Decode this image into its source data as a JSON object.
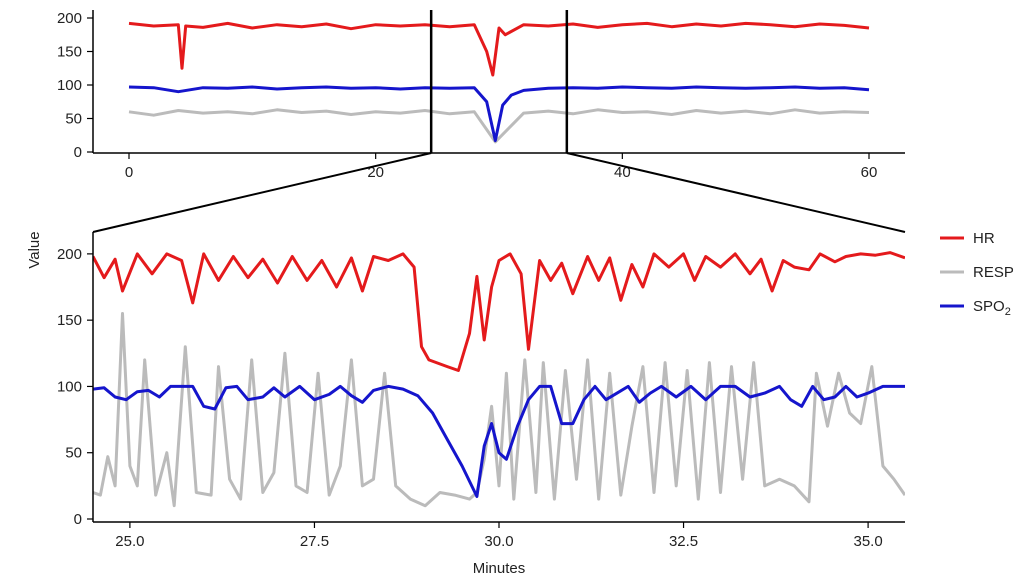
{
  "chart_data": [
    {
      "type": "line",
      "id": "overview",
      "xlim": [
        0,
        60
      ],
      "ylim": [
        0,
        200
      ],
      "xticks": [
        "0",
        "20",
        "40",
        "60"
      ],
      "yticks": [
        "0",
        "50",
        "100",
        "150",
        "200"
      ],
      "xlabel": "",
      "ylabel": "",
      "highlight_window": [
        24.5,
        35.5
      ],
      "series": [
        {
          "name": "RESP",
          "color": "#bbbbbb",
          "x": [
            0,
            2,
            4,
            6,
            8,
            10,
            12,
            14,
            16,
            18,
            20,
            22,
            24,
            26,
            28,
            29.7,
            32,
            34,
            36,
            38,
            40,
            42,
            44,
            46,
            48,
            50,
            52,
            54,
            56,
            58,
            60
          ],
          "y": [
            60,
            55,
            62,
            58,
            60,
            57,
            63,
            59,
            61,
            56,
            60,
            58,
            62,
            57,
            60,
            15,
            58,
            61,
            57,
            63,
            59,
            60,
            56,
            62,
            58,
            61,
            57,
            63,
            58,
            60,
            59
          ]
        },
        {
          "name": "HR",
          "color": "#e41a1c",
          "x": [
            0,
            2,
            4,
            4.3,
            4.6,
            6,
            8,
            10,
            12,
            14,
            16,
            18,
            20,
            22,
            24,
            26,
            28,
            29,
            29.5,
            30,
            30.5,
            32,
            34,
            36,
            38,
            40,
            42,
            44,
            46,
            48,
            50,
            52,
            54,
            56,
            58,
            60
          ],
          "y": [
            192,
            188,
            190,
            125,
            188,
            186,
            192,
            185,
            190,
            187,
            191,
            184,
            190,
            188,
            190,
            187,
            190,
            150,
            115,
            185,
            175,
            190,
            188,
            191,
            186,
            190,
            192,
            187,
            191,
            188,
            192,
            190,
            187,
            191,
            189,
            185
          ]
        },
        {
          "name": "SPO₂",
          "color": "#1515cc",
          "x": [
            0,
            2,
            4,
            6,
            8,
            10,
            12,
            14,
            16,
            18,
            20,
            22,
            24,
            26,
            28,
            29,
            29.7,
            30.3,
            31,
            32,
            34,
            36,
            38,
            40,
            42,
            44,
            46,
            48,
            50,
            52,
            54,
            56,
            58,
            60
          ],
          "y": [
            97,
            96,
            90,
            96,
            95,
            97,
            94,
            96,
            97,
            95,
            96,
            94,
            96,
            95,
            96,
            75,
            17,
            70,
            85,
            92,
            95,
            96,
            95,
            97,
            96,
            95,
            97,
            96,
            95,
            96,
            97,
            95,
            96,
            93
          ]
        }
      ]
    },
    {
      "type": "line",
      "id": "detail",
      "xlim": [
        24.5,
        35.5
      ],
      "ylim": [
        0,
        215
      ],
      "xticks": [
        "25.0",
        "27.5",
        "30.0",
        "32.5",
        "35.0"
      ],
      "yticks": [
        "0",
        "50",
        "100",
        "150",
        "200"
      ],
      "xlabel": "Minutes",
      "ylabel": "Value",
      "legend_position": "right",
      "series": [
        {
          "name": "RESP",
          "color": "#bbbbbb",
          "x": [
            24.5,
            24.6,
            24.7,
            24.8,
            24.9,
            25.0,
            25.1,
            25.2,
            25.35,
            25.5,
            25.6,
            25.75,
            25.9,
            26.1,
            26.2,
            26.35,
            26.5,
            26.65,
            26.8,
            26.95,
            27.1,
            27.25,
            27.4,
            27.55,
            27.7,
            27.85,
            28.0,
            28.15,
            28.3,
            28.45,
            28.6,
            28.8,
            29.0,
            29.2,
            29.4,
            29.6,
            29.7,
            29.8,
            29.9,
            30.0,
            30.1,
            30.2,
            30.35,
            30.5,
            30.6,
            30.75,
            30.9,
            31.05,
            31.2,
            31.35,
            31.5,
            31.65,
            31.8,
            31.95,
            32.1,
            32.25,
            32.4,
            32.55,
            32.7,
            32.85,
            33.0,
            33.15,
            33.3,
            33.45,
            33.6,
            33.8,
            34.0,
            34.2,
            34.3,
            34.45,
            34.6,
            34.75,
            34.9,
            35.05,
            35.2,
            35.35,
            35.5
          ],
          "y": [
            20,
            18,
            47,
            25,
            155,
            40,
            25,
            120,
            18,
            50,
            10,
            130,
            20,
            18,
            115,
            30,
            15,
            120,
            20,
            35,
            125,
            25,
            20,
            110,
            18,
            40,
            120,
            25,
            30,
            110,
            25,
            15,
            10,
            20,
            18,
            15,
            20,
            45,
            85,
            25,
            110,
            15,
            120,
            20,
            118,
            15,
            112,
            30,
            120,
            15,
            110,
            18,
            70,
            115,
            20,
            118,
            25,
            112,
            15,
            118,
            20,
            115,
            30,
            118,
            25,
            30,
            25,
            13,
            110,
            70,
            110,
            80,
            72,
            115,
            40,
            30,
            18
          ]
        },
        {
          "name": "HR",
          "color": "#e41a1c",
          "x": [
            24.5,
            24.65,
            24.8,
            24.9,
            25.1,
            25.3,
            25.5,
            25.7,
            25.85,
            26.0,
            26.2,
            26.4,
            26.6,
            26.8,
            27.0,
            27.2,
            27.4,
            27.6,
            27.8,
            28.0,
            28.15,
            28.3,
            28.5,
            28.7,
            28.85,
            28.95,
            29.05,
            29.3,
            29.45,
            29.6,
            29.7,
            29.8,
            29.9,
            30.0,
            30.15,
            30.3,
            30.4,
            30.55,
            30.7,
            30.85,
            31.0,
            31.2,
            31.35,
            31.5,
            31.65,
            31.8,
            31.95,
            32.1,
            32.3,
            32.5,
            32.65,
            32.8,
            33.0,
            33.2,
            33.4,
            33.55,
            33.7,
            33.85,
            34.0,
            34.2,
            34.35,
            34.55,
            34.7,
            34.9,
            35.1,
            35.3,
            35.5
          ],
          "y": [
            198,
            182,
            196,
            172,
            200,
            185,
            200,
            195,
            163,
            200,
            180,
            198,
            182,
            196,
            178,
            198,
            180,
            195,
            175,
            197,
            172,
            198,
            195,
            200,
            190,
            130,
            120,
            115,
            112,
            140,
            183,
            135,
            175,
            195,
            200,
            185,
            128,
            195,
            180,
            193,
            170,
            198,
            180,
            197,
            165,
            192,
            175,
            200,
            190,
            200,
            180,
            198,
            190,
            200,
            185,
            196,
            172,
            195,
            190,
            188,
            200,
            194,
            198,
            200,
            199,
            201,
            197
          ]
        },
        {
          "name": "SPO₂",
          "color": "#1515cc",
          "x": [
            24.5,
            24.65,
            24.8,
            24.95,
            25.1,
            25.25,
            25.4,
            25.55,
            25.7,
            25.85,
            26.0,
            26.15,
            26.3,
            26.45,
            26.6,
            26.8,
            26.95,
            27.1,
            27.3,
            27.5,
            27.7,
            27.85,
            28.0,
            28.15,
            28.3,
            28.5,
            28.7,
            28.9,
            29.1,
            29.3,
            29.5,
            29.7,
            29.8,
            29.9,
            30.0,
            30.1,
            30.25,
            30.4,
            30.55,
            30.7,
            30.85,
            31.0,
            31.15,
            31.3,
            31.45,
            31.6,
            31.75,
            31.9,
            32.05,
            32.2,
            32.4,
            32.6,
            32.8,
            33.0,
            33.2,
            33.4,
            33.6,
            33.8,
            33.95,
            34.1,
            34.25,
            34.4,
            34.55,
            34.7,
            34.85,
            35.0,
            35.2,
            35.35,
            35.5
          ],
          "y": [
            98,
            99,
            92,
            90,
            96,
            97,
            92,
            100,
            100,
            100,
            85,
            83,
            99,
            100,
            90,
            92,
            99,
            92,
            100,
            90,
            94,
            100,
            93,
            88,
            97,
            100,
            98,
            93,
            80,
            60,
            40,
            17,
            55,
            72,
            50,
            45,
            70,
            90,
            100,
            100,
            72,
            72,
            90,
            100,
            90,
            95,
            100,
            88,
            95,
            100,
            92,
            100,
            90,
            100,
            100,
            92,
            95,
            100,
            90,
            85,
            100,
            90,
            92,
            100,
            92,
            95,
            100,
            100,
            100
          ]
        }
      ]
    }
  ],
  "legend": [
    {
      "label": "HR",
      "color": "#e41a1c"
    },
    {
      "label": "RESP",
      "color": "#bbbbbb"
    },
    {
      "label": "SPO",
      "sub": "2",
      "color": "#1515cc"
    }
  ]
}
